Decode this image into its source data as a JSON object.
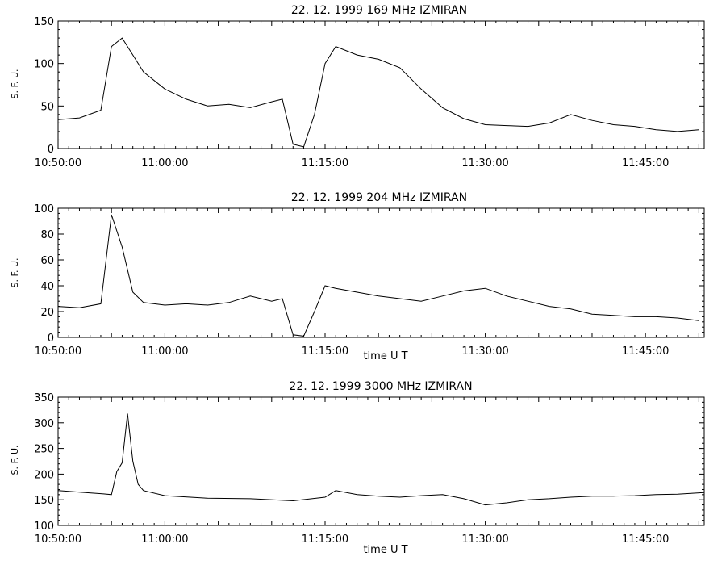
{
  "chart_data": [
    {
      "type": "line",
      "title": "22.  12.  1999   169 MHz   IZMIRAN",
      "ylabel": "S. F. U.",
      "xlabel": "",
      "xlim": [
        "10:50:00",
        "11:50:30"
      ],
      "ylim": [
        0,
        150
      ],
      "yticks": [
        0,
        50,
        100,
        150
      ],
      "xticks": [
        "10:50:00",
        "11:00:00",
        "11:15:00",
        "11:30:00",
        "11:45:00"
      ],
      "grid": false,
      "series": [
        {
          "x": [
            "10:50",
            "10:52",
            "10:54",
            "10:55",
            "10:56",
            "10:57",
            "10:58",
            "11:00",
            "11:02",
            "11:04",
            "11:06",
            "11:08",
            "11:10",
            "11:11",
            "11:12",
            "11:13",
            "11:14",
            "11:15",
            "11:16",
            "11:18",
            "11:20",
            "11:22",
            "11:24",
            "11:26",
            "11:28",
            "11:30",
            "11:32",
            "11:34",
            "11:36",
            "11:38",
            "11:40",
            "11:42",
            "11:44",
            "11:46",
            "11:48",
            "11:50"
          ],
          "y": [
            34,
            36,
            45,
            120,
            130,
            110,
            90,
            70,
            58,
            50,
            52,
            48,
            55,
            58,
            5,
            2,
            40,
            100,
            120,
            110,
            105,
            95,
            70,
            48,
            35,
            28,
            27,
            26,
            30,
            40,
            33,
            28,
            26,
            22,
            20,
            22
          ]
        }
      ]
    },
    {
      "type": "line",
      "title": "22.  12.  1999   204 MHz   IZMIRAN",
      "ylabel": "S. F. U.",
      "xlabel": "time   U T",
      "xlim": [
        "10:50:00",
        "11:50:30"
      ],
      "ylim": [
        0,
        100
      ],
      "yticks": [
        0,
        20,
        40,
        60,
        80,
        100
      ],
      "xticks": [
        "10:50:00",
        "11:00:00",
        "11:15:00",
        "11:30:00",
        "11:45:00"
      ],
      "grid": false,
      "series": [
        {
          "x": [
            "10:50",
            "10:52",
            "10:54",
            "10:55",
            "10:56",
            "10:57",
            "10:58",
            "11:00",
            "11:02",
            "11:04",
            "11:06",
            "11:08",
            "11:10",
            "11:11",
            "11:12",
            "11:13",
            "11:14",
            "11:15",
            "11:16",
            "11:18",
            "11:20",
            "11:22",
            "11:24",
            "11:26",
            "11:28",
            "11:30",
            "11:32",
            "11:34",
            "11:36",
            "11:38",
            "11:40",
            "11:42",
            "11:44",
            "11:46",
            "11:48",
            "11:50"
          ],
          "y": [
            24,
            23,
            26,
            95,
            70,
            35,
            27,
            25,
            26,
            25,
            27,
            32,
            28,
            30,
            2,
            1,
            20,
            40,
            38,
            35,
            32,
            30,
            28,
            32,
            36,
            38,
            32,
            28,
            24,
            22,
            18,
            17,
            16,
            16,
            15,
            13
          ]
        }
      ]
    },
    {
      "type": "line",
      "title": "22.  12.  1999    3000 MHz    IZMIRAN",
      "ylabel": "S. F. U.",
      "xlabel": "time   U T",
      "xlim": [
        "10:50:00",
        "11:50:30"
      ],
      "ylim": [
        100,
        350
      ],
      "yticks": [
        100,
        150,
        200,
        250,
        300,
        350
      ],
      "xticks": [
        "10:50:00",
        "11:00:00",
        "11:15:00",
        "11:30:00",
        "11:45:00"
      ],
      "grid": false,
      "series": [
        {
          "x": [
            "10:50",
            "10:52",
            "10:54",
            "10:55",
            "10:55:30",
            "10:56",
            "10:56:30",
            "10:57",
            "10:57:30",
            "10:58",
            "11:00",
            "11:04",
            "11:08",
            "11:12",
            "11:15",
            "11:16",
            "11:18",
            "11:20",
            "11:22",
            "11:24",
            "11:26",
            "11:28",
            "11:30",
            "11:32",
            "11:34",
            "11:36",
            "11:38",
            "11:40",
            "11:42",
            "11:44",
            "11:46",
            "11:48",
            "11:50:30"
          ],
          "y": [
            168,
            165,
            162,
            160,
            205,
            222,
            318,
            225,
            180,
            168,
            158,
            153,
            152,
            148,
            155,
            168,
            160,
            157,
            155,
            158,
            160,
            152,
            140,
            144,
            150,
            152,
            155,
            157,
            157,
            158,
            160,
            161,
            164
          ]
        }
      ]
    }
  ]
}
